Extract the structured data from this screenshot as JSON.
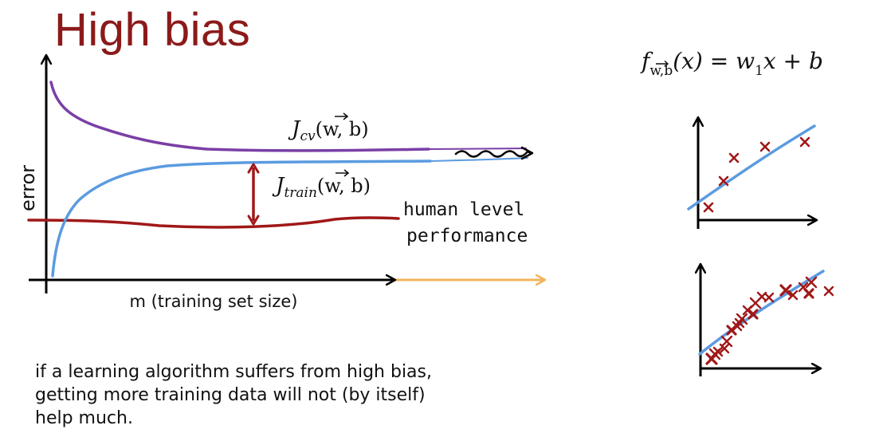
{
  "slide": {
    "title": "High bias",
    "caption_lines": [
      "if a learning algorithm suffers from high bias,",
      "getting more training data will not (by itself)",
      "help much."
    ]
  },
  "curve_plot": {
    "y_axis_label": "error",
    "x_axis_label": "m (training set size)",
    "jcv_label": {
      "f": "J",
      "sub": "cv",
      "args": "(w, b)"
    },
    "jtrain_label": {
      "f": "J",
      "sub": "train",
      "args": "(w, b)"
    },
    "human_level_label": [
      "human level",
      "performance"
    ],
    "colors": {
      "jcv": "#7a3fa6",
      "jtrain": "#5b9be0",
      "human": "#a01818",
      "gap": "#a01818",
      "extension": "#f1b45a",
      "axes": "#000000"
    }
  },
  "formula": {
    "f": "f",
    "sub": "w,b",
    "args": "(x) = w",
    "w_sub": "1",
    "rest": "x + b"
  },
  "scatter_small": {
    "colors": {
      "points": "#a01818",
      "fit": "#5b9be0"
    }
  },
  "scatter_large": {
    "colors": {
      "points": "#a01818",
      "fit": "#5b9be0"
    }
  }
}
